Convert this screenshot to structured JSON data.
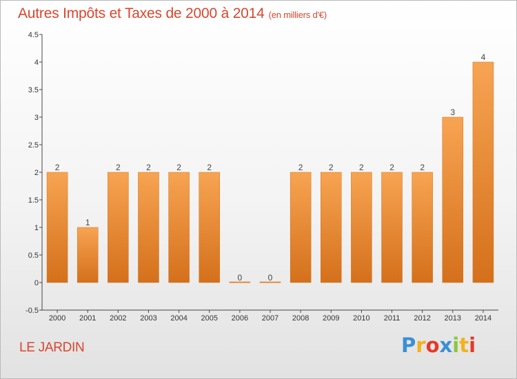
{
  "header": {
    "title": "Autres Impôts et Taxes de 2000 à 2014",
    "subtitle": "(en milliers d'€)"
  },
  "footer": {
    "place": "LE JARDIN"
  },
  "logo": {
    "letters": [
      "P",
      "r",
      "o",
      "x",
      "i",
      "t",
      "i"
    ],
    "colors": [
      "#3b8fd6",
      "#f2b21c",
      "#e23b2a",
      "#3b8fd6",
      "#8cc63f",
      "#f2b21c",
      "#e23b2a"
    ]
  },
  "chart_data": {
    "type": "bar",
    "categories": [
      "2000",
      "2001",
      "2002",
      "2003",
      "2004",
      "2005",
      "2006",
      "2007",
      "2008",
      "2009",
      "2010",
      "2011",
      "2012",
      "2013",
      "2014"
    ],
    "values": [
      2,
      1,
      2,
      2,
      2,
      2,
      0,
      0,
      2,
      2,
      2,
      2,
      2,
      3,
      4
    ],
    "data_labels": [
      "2",
      "1",
      "2",
      "2",
      "2",
      "2",
      "0",
      "0",
      "2",
      "2",
      "2",
      "2",
      "2",
      "3",
      "4"
    ],
    "title": "Autres Impôts et Taxes de 2000 à 2014",
    "xlabel": "",
    "ylabel": "",
    "ylim": [
      -0.5,
      4.5
    ],
    "yticks": [
      "-0.5",
      "0",
      "0.5",
      "1",
      "1.5",
      "2",
      "2.5",
      "3",
      "3.5",
      "4",
      "4.5"
    ],
    "grid": false,
    "legend": "none",
    "bar_color_top": "#f7a452",
    "bar_color_bottom": "#d4701b"
  }
}
